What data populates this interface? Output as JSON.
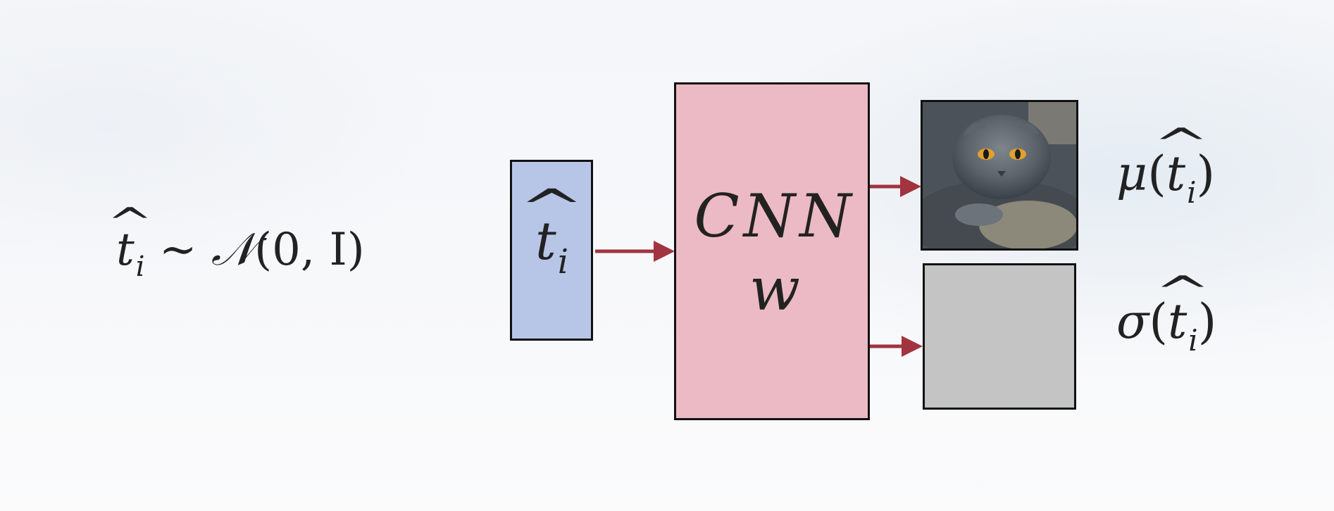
{
  "prior": {
    "var": "t",
    "sub": "i",
    "sim": "∼",
    "dist": "𝒩",
    "args": "(0, I)"
  },
  "latent": {
    "var": "t",
    "sub": "i"
  },
  "network": {
    "name": "CNN",
    "weights": "w"
  },
  "outputs": [
    {
      "func": "μ",
      "var": "t",
      "sub": "i"
    },
    {
      "func": "σ",
      "var": "t",
      "sub": "i"
    }
  ],
  "icons": {
    "photo": "cat-photo",
    "arrow": "arrow-right-icon"
  },
  "colors": {
    "latent_fill": "#b7c5e6",
    "cnn_fill": "#ecbac4",
    "sigma_fill": "#c4c4c4",
    "arrow": "#a1343f"
  }
}
